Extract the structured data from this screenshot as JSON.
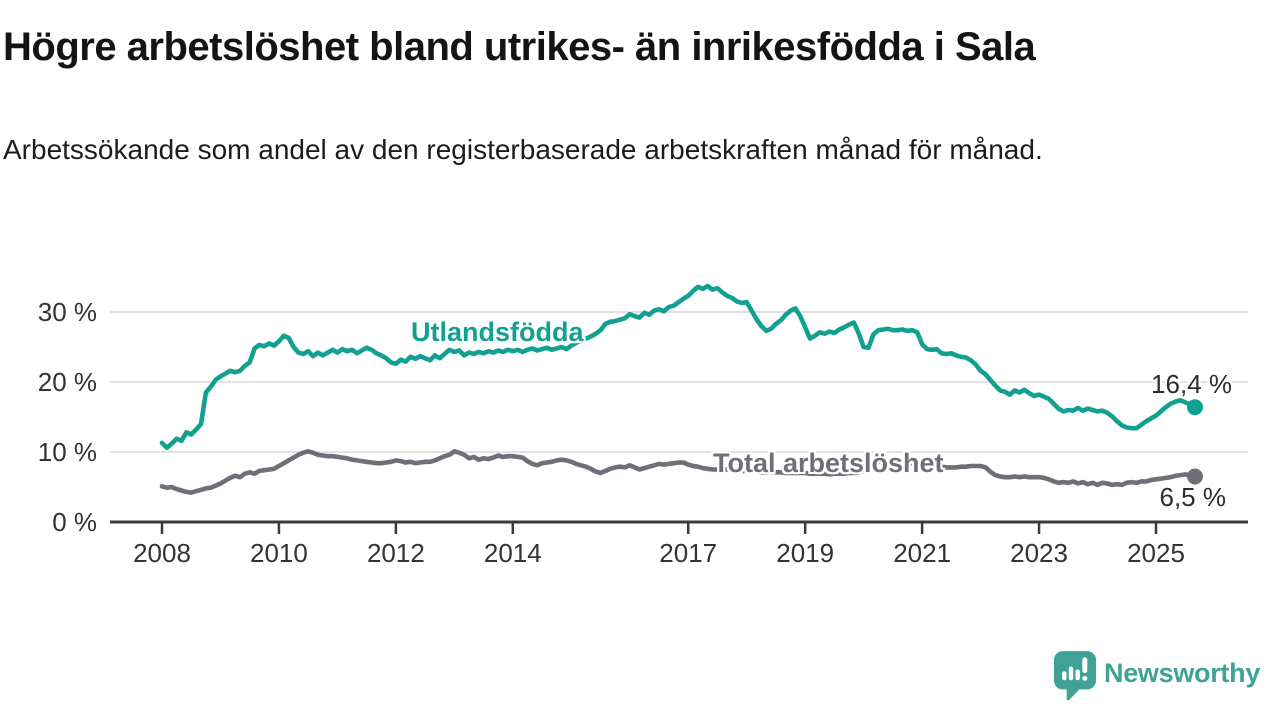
{
  "header": {
    "title": "Högre arbetslöshet bland utrikes- än inrikesfödda i Sala",
    "subtitle": "Arbetssökande som andel av den registerbaserade arbetskraften månad för månad."
  },
  "colors": {
    "teal": "#12A091",
    "gray": "#6F6F78",
    "grid": "#D9D9D9",
    "axis": "#3B3B3B",
    "tick_text": "#333333",
    "value_text": "#2E2E2E",
    "logo": "#3FA296"
  },
  "chart_data": {
    "type": "line",
    "title": "Högre arbetslöshet bland utrikes- än inrikesfödda i Sala",
    "subtitle": "Arbetssökande som andel av den registerbaserade arbetskraften månad för månad.",
    "xlabel": "",
    "ylabel": "",
    "grid": "horizontal",
    "legend_position": "inline-labels",
    "ylim": [
      0,
      35
    ],
    "xlim": [
      2007.1,
      2026.6
    ],
    "y_ticks": [
      0,
      10,
      20,
      30
    ],
    "y_tick_labels": [
      "0 %",
      "10 %",
      "20 %",
      "30 %"
    ],
    "x_ticks": [
      2008,
      2010,
      2012,
      2014,
      2017,
      2019,
      2021,
      2023,
      2025
    ],
    "x_tick_labels": [
      "2008",
      "2010",
      "2012",
      "2014",
      "2017",
      "2019",
      "2021",
      "2023",
      "2025"
    ],
    "x_start": 2008.0,
    "x_step": 0.0833333,
    "x_unit": "decimal-year (monthly samples, Jan 2008 – Sep 2025)",
    "series": [
      {
        "name": "Utlandsfödda",
        "color": "#12A091",
        "end_label": "16,4 %",
        "end_value": 16.4,
        "values": [
          11.3,
          10.6,
          11.2,
          11.9,
          11.6,
          12.8,
          12.5,
          13.2,
          14.0,
          18.5,
          19.3,
          20.3,
          20.8,
          21.2,
          21.6,
          21.4,
          21.6,
          22.3,
          22.8,
          24.8,
          25.3,
          25.1,
          25.5,
          25.2,
          25.8,
          26.6,
          26.3,
          25.0,
          24.2,
          24.0,
          24.4,
          23.7,
          24.2,
          23.8,
          24.2,
          24.6,
          24.2,
          24.7,
          24.4,
          24.6,
          24.1,
          24.5,
          24.9,
          24.6,
          24.1,
          23.8,
          23.4,
          22.8,
          22.6,
          23.2,
          22.9,
          23.6,
          23.3,
          23.7,
          23.4,
          23.1,
          23.8,
          23.4,
          24.0,
          24.6,
          24.3,
          24.5,
          23.8,
          24.2,
          24.0,
          24.3,
          24.1,
          24.4,
          24.2,
          24.5,
          24.3,
          24.6,
          24.4,
          24.6,
          24.3,
          24.6,
          24.8,
          24.5,
          24.7,
          24.9,
          24.6,
          24.8,
          25.0,
          24.7,
          25.2,
          25.6,
          25.9,
          26.2,
          26.5,
          26.9,
          27.4,
          28.3,
          28.6,
          28.7,
          28.9,
          29.1,
          29.7,
          29.4,
          29.2,
          29.9,
          29.6,
          30.2,
          30.4,
          30.1,
          30.7,
          30.9,
          31.4,
          31.9,
          32.3,
          33.0,
          33.6,
          33.3,
          33.7,
          33.2,
          33.4,
          32.8,
          32.3,
          32.0,
          31.5,
          31.3,
          31.4,
          30.2,
          29.0,
          28.0,
          27.3,
          27.6,
          28.3,
          28.8,
          29.6,
          30.2,
          30.5,
          29.4,
          27.8,
          26.2,
          26.6,
          27.1,
          26.9,
          27.2,
          27.0,
          27.5,
          27.8,
          28.2,
          28.5,
          26.9,
          25.0,
          24.9,
          26.8,
          27.4,
          27.5,
          27.6,
          27.4,
          27.4,
          27.5,
          27.3,
          27.4,
          27.1,
          25.4,
          24.7,
          24.6,
          24.7,
          24.1,
          24.0,
          24.1,
          23.8,
          23.6,
          23.5,
          23.1,
          22.5,
          21.6,
          21.1,
          20.3,
          19.5,
          18.8,
          18.6,
          18.2,
          18.8,
          18.5,
          18.9,
          18.4,
          18.0,
          18.2,
          17.9,
          17.6,
          16.9,
          16.2,
          15.8,
          16.0,
          15.9,
          16.3,
          15.9,
          16.2,
          16.0,
          15.8,
          15.9,
          15.6,
          15.1,
          14.4,
          13.8,
          13.5,
          13.4,
          13.4,
          13.9,
          14.4,
          14.8,
          15.2,
          15.8,
          16.4,
          16.9,
          17.2,
          17.4,
          17.1,
          16.8,
          16.4
        ]
      },
      {
        "name": "Total arbetslöshet",
        "color": "#6F6F78",
        "end_label": "6,5 %",
        "end_value": 6.5,
        "values": [
          5.1,
          4.9,
          5.0,
          4.7,
          4.5,
          4.3,
          4.2,
          4.4,
          4.6,
          4.8,
          4.9,
          5.2,
          5.5,
          5.9,
          6.3,
          6.6,
          6.4,
          6.9,
          7.1,
          6.9,
          7.3,
          7.4,
          7.5,
          7.6,
          8.0,
          8.4,
          8.8,
          9.2,
          9.6,
          9.9,
          10.1,
          9.9,
          9.6,
          9.5,
          9.4,
          9.4,
          9.3,
          9.2,
          9.1,
          8.9,
          8.8,
          8.7,
          8.6,
          8.5,
          8.4,
          8.4,
          8.5,
          8.6,
          8.8,
          8.7,
          8.5,
          8.6,
          8.4,
          8.5,
          8.6,
          8.6,
          8.8,
          9.1,
          9.4,
          9.6,
          10.1,
          9.9,
          9.6,
          9.1,
          9.3,
          8.9,
          9.1,
          9.0,
          9.2,
          9.5,
          9.3,
          9.4,
          9.4,
          9.3,
          9.2,
          8.7,
          8.3,
          8.1,
          8.4,
          8.5,
          8.6,
          8.8,
          8.9,
          8.8,
          8.6,
          8.3,
          8.1,
          7.9,
          7.6,
          7.2,
          7.0,
          7.3,
          7.6,
          7.8,
          7.9,
          7.8,
          8.1,
          7.8,
          7.5,
          7.7,
          7.9,
          8.1,
          8.3,
          8.2,
          8.3,
          8.4,
          8.5,
          8.5,
          8.2,
          8.0,
          7.9,
          7.7,
          7.6,
          7.5,
          7.5,
          7.6,
          7.5,
          7.4,
          7.4,
          7.3,
          7.3,
          7.2,
          7.2,
          7.1,
          7.1,
          7.2,
          7.1,
          7.1,
          7.0,
          7.0,
          7.0,
          7.0,
          7.0,
          6.9,
          6.9,
          6.9,
          6.9,
          6.8,
          6.9,
          6.9,
          6.9,
          7.0,
          7.0,
          7.1,
          7.3,
          7.9,
          8.4,
          8.6,
          8.7,
          8.6,
          8.6,
          8.5,
          8.5,
          8.4,
          8.4,
          8.3,
          8.2,
          8.1,
          8.0,
          7.9,
          7.9,
          7.8,
          7.8,
          7.8,
          7.9,
          7.9,
          8.0,
          8.0,
          8.0,
          7.8,
          7.2,
          6.7,
          6.5,
          6.4,
          6.4,
          6.5,
          6.4,
          6.5,
          6.4,
          6.4,
          6.4,
          6.3,
          6.1,
          5.8,
          5.6,
          5.7,
          5.6,
          5.8,
          5.5,
          5.7,
          5.4,
          5.6,
          5.3,
          5.6,
          5.5,
          5.3,
          5.4,
          5.3,
          5.6,
          5.7,
          5.6,
          5.8,
          5.8,
          6.0,
          6.1,
          6.2,
          6.3,
          6.4,
          6.6,
          6.7,
          6.8,
          6.7,
          6.5
        ]
      }
    ]
  },
  "branding": {
    "logo_text": "Newsworthy"
  }
}
